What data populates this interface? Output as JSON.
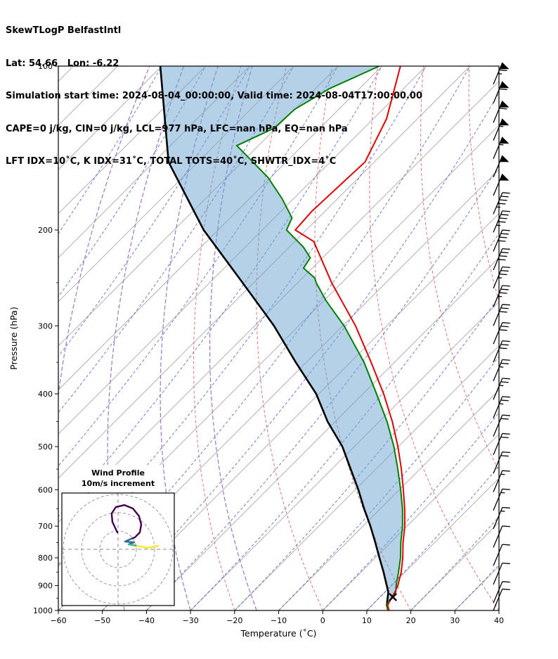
{
  "header": {
    "line1": "SkewTLogP BelfastIntl",
    "line2": "Lat: 54.66   Lon: -6.22",
    "line3": "Simulation start time: 2024-08-04_00:00:00, Valid time: 2024-08-04T17:00:00.00",
    "line4": "CAPE=0 j/kg, CIN=0 j/kg, LCL=977 hPa, LFC=nan hPa, EQ=nan hPa",
    "line5": "LFT IDX=10˚C, K IDX=31˚C, TOTAL TOTS=40˚C, SHWTR_IDX=4˚C"
  },
  "chart_data": {
    "type": "skewt-logp",
    "title": "SkewTLogP BelfastIntl",
    "station": "BelfastIntl",
    "location": {
      "lat": 54.66,
      "lon": -6.22
    },
    "simulation_start_time": "2024-08-04_00:00:00",
    "valid_time": "2024-08-04T17:00:00.00",
    "indices": {
      "CAPE": "0 j/kg",
      "CIN": "0 j/kg",
      "LCL": "977 hPa",
      "LFC": "nan hPa",
      "EQ": "nan hPa",
      "LFT_IDX": "10˚C",
      "K_IDX": "31˚C",
      "TOTAL_TOTS": "40˚C",
      "SHWTR_IDX": "4˚C"
    },
    "xlabel": "Temperature (˚C)",
    "ylabel": "Pressure (hPa)",
    "xlim": [
      -60,
      40
    ],
    "pressure_lim": [
      1000,
      100
    ],
    "x_ticks": [
      "−60",
      "−50",
      "−40",
      "−30",
      "−20",
      "−10",
      "0",
      "10",
      "20",
      "30",
      "40"
    ],
    "y_ticks": [
      "100",
      "200",
      "300",
      "400",
      "500",
      "600",
      "700",
      "800",
      "900",
      "1000"
    ],
    "y_minor_ticks": [
      150,
      250,
      350,
      450,
      550,
      650,
      750,
      850,
      950
    ],
    "series": {
      "temperature": {
        "name": "temperature",
        "color": "#e00000",
        "pressure": [
          1000,
          977,
          950,
          925,
          900,
          850,
          800,
          750,
          700,
          650,
          600,
          550,
          500,
          450,
          400,
          350,
          300,
          250,
          225,
          210,
          200,
          185,
          150,
          125,
          100
        ],
        "values": [
          15.0,
          13.5,
          12.8,
          12.2,
          11.4,
          9.1,
          6.2,
          2.8,
          -0.5,
          -4.5,
          -9.1,
          -14.2,
          -20.1,
          -27.0,
          -35.3,
          -45.3,
          -57.1,
          -72.3,
          -80.4,
          -85.7,
          -92.5,
          -93.0,
          -92.1,
          -97.0,
          -105.8
        ]
      },
      "dewpoint": {
        "name": "dewpoint",
        "color": "#008000",
        "pressure": [
          1000,
          977,
          950,
          925,
          900,
          850,
          800,
          750,
          700,
          650,
          600,
          550,
          500,
          450,
          400,
          350,
          300,
          270,
          250,
          245,
          235,
          225,
          215,
          200,
          190,
          175,
          160,
          140,
          130,
          120,
          110,
          100
        ],
        "values": [
          14.8,
          13.2,
          12.8,
          12.4,
          11.0,
          8.5,
          5.7,
          2.3,
          -1.0,
          -5.0,
          -9.7,
          -15.0,
          -21.0,
          -28.2,
          -36.9,
          -46.9,
          -59.7,
          -69.4,
          -75.8,
          -77.2,
          -82.0,
          -82.8,
          -86.8,
          -94.5,
          -96.0,
          -102.7,
          -110.7,
          -124.9,
          -120.4,
          -120.0,
          -116.8,
          -110.6
        ]
      },
      "parcel": {
        "name": "parcel",
        "color": "#000000",
        "pressure": [
          1000,
          977,
          925,
          850,
          800,
          750,
          700,
          650,
          600,
          550,
          500,
          450,
          400,
          350,
          300,
          250,
          200,
          150,
          100
        ],
        "values": [
          15.0,
          13.3,
          10.7,
          5.1,
          0.9,
          -3.5,
          -8.3,
          -13.7,
          -19.3,
          -25.7,
          -32.7,
          -41.7,
          -50.6,
          -62.4,
          -75.6,
          -92.5,
          -113.3,
          -136.7,
          -160.3
        ]
      }
    },
    "surface_marker": {
      "pressure": 945,
      "temp": 12.9
    },
    "shading": {
      "color": "#69a3d0",
      "opacity": 0.5,
      "between": [
        "parcel",
        "dewpoint"
      ]
    },
    "background": {
      "isotherms": {
        "start": -180,
        "end": 40,
        "step": 10,
        "color": "#b0b0b0"
      },
      "dry_adiabats": {
        "start": -20,
        "end": 180,
        "step": 20,
        "color": "#d65f5f",
        "dash": "4,3"
      },
      "moist_adiabats": {
        "start": -130,
        "end": 40,
        "step": 10,
        "color": "#4a5cd0",
        "dash": "4,3",
        "curve_c": 30,
        "curve_exp": 1.8
      },
      "extra_adiabats": {
        "thetas": [
          -60,
          -45,
          -30,
          -15
        ],
        "color": "#9467bd",
        "dash": "6,3"
      }
    },
    "wind_barbs": {
      "color": "#000000",
      "format": "[pressure_hPa, speed_kt]",
      "levels": [
        [
          108,
          65
        ],
        [
          117,
          60
        ],
        [
          127,
          60
        ],
        [
          137,
          55
        ],
        [
          148,
          55
        ],
        [
          160,
          50
        ],
        [
          173,
          50
        ],
        [
          187,
          45
        ],
        [
          202,
          45
        ],
        [
          219,
          40
        ],
        [
          237,
          40
        ],
        [
          256,
          35
        ],
        [
          277,
          35
        ],
        [
          300,
          30
        ],
        [
          324,
          30
        ],
        [
          350,
          30
        ],
        [
          379,
          25
        ],
        [
          410,
          25
        ],
        [
          443,
          25
        ],
        [
          479,
          20
        ],
        [
          518,
          20
        ],
        [
          560,
          20
        ],
        [
          606,
          15
        ],
        [
          655,
          15
        ],
        [
          708,
          15
        ],
        [
          766,
          10
        ],
        [
          828,
          10
        ],
        [
          896,
          10
        ],
        [
          969,
          10
        ],
        [
          1000,
          10
        ]
      ]
    },
    "hodograph": {
      "title_line1": "Wind Profile",
      "title_line2": "10m/s increment",
      "ring_interval_ms": 10,
      "rings": [
        10,
        20,
        30
      ],
      "segments": [
        {
          "color": "#440154",
          "points": [
            [
              -0.4,
              9.2
            ],
            [
              -3.1,
              15.0
            ],
            [
              -3.5,
              19.6
            ],
            [
              -1.2,
              23.1
            ],
            [
              3.5,
              24.2
            ],
            [
              8.1,
              22.3
            ],
            [
              11.5,
              18.1
            ],
            [
              12.7,
              13.5
            ],
            [
              11.9,
              9.2
            ],
            [
              9.2,
              6.5
            ],
            [
              7.3,
              5.8
            ]
          ]
        },
        {
          "color": "#31688e",
          "points": [
            [
              7.3,
              5.8
            ],
            [
              3.8,
              4.2
            ],
            [
              8.8,
              3.8
            ],
            [
              5.8,
              2.7
            ]
          ]
        },
        {
          "color": "#35b779",
          "points": [
            [
              5.8,
              2.7
            ],
            [
              10.4,
              1.9
            ]
          ]
        },
        {
          "color": "#fde725",
          "points": [
            [
              10.4,
              1.9
            ],
            [
              16.2,
              0.8
            ],
            [
              21.9,
              1.9
            ]
          ]
        }
      ]
    }
  }
}
